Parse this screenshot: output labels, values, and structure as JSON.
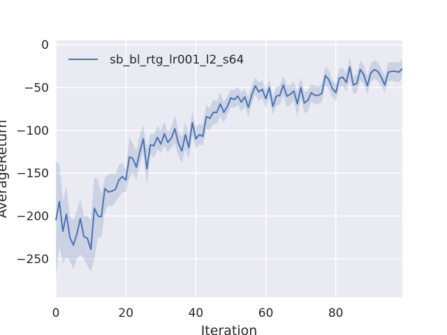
{
  "chart_data": {
    "type": "line",
    "title": "",
    "xlabel": "Iteration",
    "ylabel": "AverageReturn",
    "xlim": [
      0,
      99
    ],
    "ylim": [
      -295,
      5
    ],
    "x_ticks": [
      0,
      20,
      40,
      60,
      80
    ],
    "y_ticks": [
      0,
      -50,
      -100,
      -150,
      -200,
      -250
    ],
    "grid": true,
    "legend": "top-left",
    "colors": {
      "background": "#eaeaf2",
      "grid": "#ffffff",
      "line": "#4c72b0",
      "band": "#4c72b0"
    },
    "series": [
      {
        "name": "sb_bl_rtg_lr001_l2_s64",
        "x": [
          0,
          1,
          2,
          3,
          4,
          5,
          6,
          7,
          8,
          9,
          10,
          11,
          12,
          13,
          14,
          15,
          16,
          17,
          18,
          19,
          20,
          21,
          22,
          23,
          24,
          25,
          26,
          27,
          28,
          29,
          30,
          31,
          32,
          33,
          34,
          35,
          36,
          37,
          38,
          39,
          40,
          41,
          42,
          43,
          44,
          45,
          46,
          47,
          48,
          49,
          50,
          51,
          52,
          53,
          54,
          55,
          56,
          57,
          58,
          59,
          60,
          61,
          62,
          63,
          64,
          65,
          66,
          67,
          68,
          69,
          70,
          71,
          72,
          73,
          74,
          75,
          76,
          77,
          78,
          79,
          80,
          81,
          82,
          83,
          84,
          85,
          86,
          87,
          88,
          89,
          90,
          91,
          92,
          93,
          94,
          95,
          96,
          97,
          98,
          99
        ],
        "y": [
          -205,
          -183,
          -218,
          -198,
          -225,
          -234,
          -221,
          -203,
          -224,
          -226,
          -239,
          -191,
          -200,
          -201,
          -168,
          -172,
          -171,
          -169,
          -158,
          -154,
          -158,
          -131,
          -133,
          -143,
          -125,
          -110,
          -145,
          -117,
          -118,
          -108,
          -116,
          -104,
          -114,
          -109,
          -98,
          -115,
          -124,
          -105,
          -120,
          -91,
          -110,
          -105,
          -107,
          -84,
          -86,
          -79,
          -79,
          -69,
          -79,
          -72,
          -62,
          -64,
          -60,
          -67,
          -61,
          -73,
          -58,
          -48,
          -55,
          -52,
          -63,
          -50,
          -72,
          -60,
          -59,
          -47,
          -60,
          -58,
          -54,
          -69,
          -50,
          -68,
          -65,
          -56,
          -59,
          -59,
          -57,
          -36,
          -41,
          -51,
          -56,
          -39,
          -38,
          -44,
          -26,
          -47,
          -45,
          -29,
          -35,
          -48,
          -33,
          -29,
          -31,
          -38,
          -47,
          -32,
          -31,
          -31,
          -32,
          -28
        ],
        "lower": [
          -270,
          -235,
          -255,
          -248,
          -252,
          -262,
          -250,
          -245,
          -250,
          -258,
          -265,
          -250,
          -225,
          -225,
          -196,
          -187,
          -189,
          -184,
          -178,
          -172,
          -172,
          -155,
          -150,
          -158,
          -140,
          -126,
          -165,
          -128,
          -132,
          -122,
          -126,
          -118,
          -126,
          -120,
          -115,
          -130,
          -138,
          -122,
          -134,
          -105,
          -122,
          -116,
          -118,
          -98,
          -100,
          -93,
          -92,
          -83,
          -91,
          -82,
          -73,
          -74,
          -70,
          -78,
          -72,
          -84,
          -69,
          -58,
          -66,
          -62,
          -74,
          -61,
          -82,
          -71,
          -70,
          -59,
          -73,
          -70,
          -65,
          -84,
          -63,
          -80,
          -78,
          -66,
          -70,
          -69,
          -67,
          -47,
          -52,
          -61,
          -66,
          -50,
          -48,
          -55,
          -40,
          -57,
          -56,
          -41,
          -46,
          -58,
          -44,
          -40,
          -42,
          -48,
          -56,
          -42,
          -42,
          -43,
          -44,
          -38
        ],
        "upper": [
          -135,
          -140,
          -182,
          -165,
          -200,
          -205,
          -194,
          -180,
          -200,
          -200,
          -205,
          -155,
          -157,
          -175,
          -155,
          -152,
          -150,
          -152,
          -140,
          -138,
          -146,
          -108,
          -115,
          -125,
          -105,
          -94,
          -122,
          -104,
          -105,
          -95,
          -100,
          -90,
          -102,
          -96,
          -82,
          -100,
          -108,
          -90,
          -105,
          -78,
          -97,
          -92,
          -94,
          -70,
          -74,
          -64,
          -66,
          -56,
          -67,
          -60,
          -52,
          -53,
          -49,
          -56,
          -51,
          -62,
          -47,
          -38,
          -44,
          -42,
          -52,
          -40,
          -61,
          -49,
          -48,
          -36,
          -48,
          -47,
          -43,
          -55,
          -38,
          -56,
          -53,
          -46,
          -48,
          -49,
          -46,
          -26,
          -30,
          -41,
          -46,
          -28,
          -27,
          -33,
          -15,
          -37,
          -34,
          -18,
          -24,
          -38,
          -22,
          -18,
          -20,
          -28,
          -37,
          -21,
          -20,
          -20,
          -21,
          -17
        ]
      }
    ]
  }
}
